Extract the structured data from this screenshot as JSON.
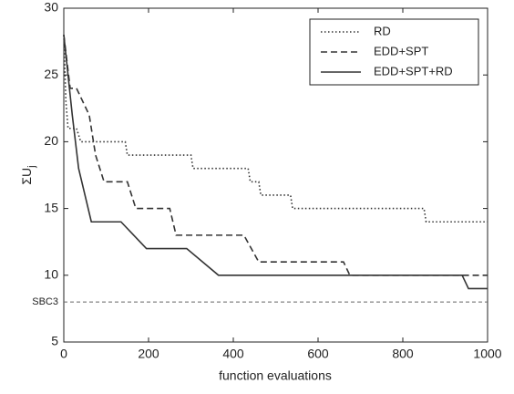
{
  "chart_data": {
    "type": "line",
    "xlabel": "function evaluations",
    "ylabel": {
      "text": "ΣU",
      "subscript": "j"
    },
    "xlim": [
      0,
      1000
    ],
    "xticks": [
      0,
      200,
      400,
      600,
      800,
      1000
    ],
    "ylim": [
      5,
      30
    ],
    "yticks": [
      5,
      10,
      15,
      20,
      25,
      30
    ],
    "legend": "upper right",
    "reference": {
      "label": "SBC3",
      "value": 8,
      "color": "#666666",
      "dash": "dashed"
    },
    "series": [
      {
        "name": "RD",
        "color": "#333333",
        "dash": "dotted",
        "x": [
          0,
          5,
          10,
          30,
          40,
          145,
          150,
          300,
          305,
          435,
          440,
          460,
          465,
          535,
          540,
          850,
          855,
          1000
        ],
        "values": [
          28,
          23,
          21,
          21,
          20,
          20,
          19,
          19,
          18,
          18,
          17,
          17,
          16,
          16,
          15,
          15,
          14,
          14
        ]
      },
      {
        "name": "EDD+SPT",
        "color": "#333333",
        "dash": "dashed",
        "x": [
          0,
          15,
          30,
          60,
          75,
          95,
          150,
          170,
          250,
          265,
          425,
          460,
          660,
          675,
          1000
        ],
        "values": [
          28,
          24,
          24,
          22,
          19,
          17,
          17,
          15,
          15,
          13,
          13,
          11,
          11,
          10,
          10
        ]
      },
      {
        "name": "EDD+SPT+RD",
        "color": "#333333",
        "dash": "solid",
        "x": [
          0,
          20,
          35,
          65,
          135,
          195,
          290,
          365,
          940,
          955,
          1000
        ],
        "values": [
          28,
          22,
          18,
          14,
          14,
          12,
          12,
          10,
          10,
          9,
          9
        ]
      }
    ]
  }
}
